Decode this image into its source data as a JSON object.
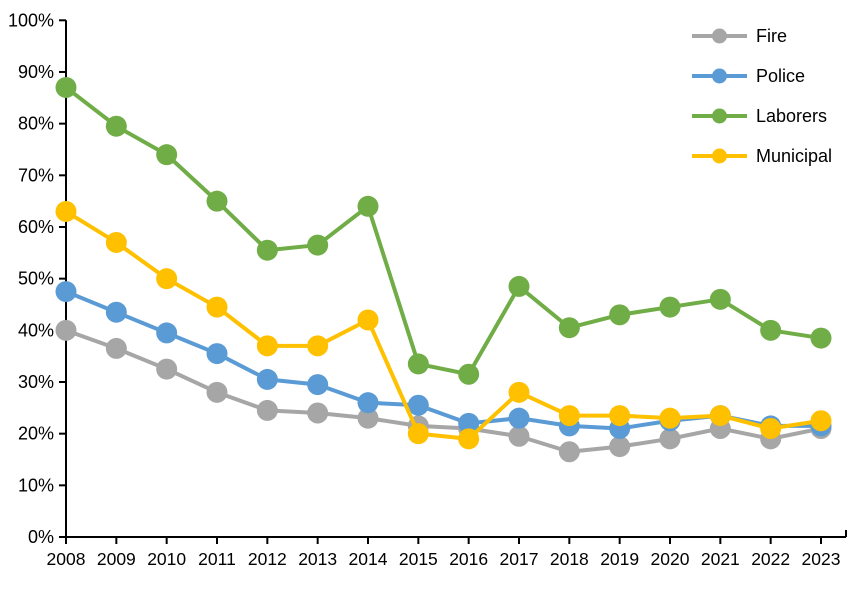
{
  "chart_data": {
    "type": "line",
    "title": "",
    "xlabel": "",
    "ylabel": "",
    "categories": [
      "2008",
      "2009",
      "2010",
      "2011",
      "2012",
      "2013",
      "2014",
      "2015",
      "2016",
      "2017",
      "2018",
      "2019",
      "2020",
      "2021",
      "2022",
      "2023"
    ],
    "series": [
      {
        "name": "Fire",
        "color": "#A6A6A6",
        "values": [
          40,
          36.5,
          32.5,
          28,
          24.5,
          24,
          23,
          21.5,
          21,
          19.5,
          16.5,
          17.5,
          19,
          21,
          19,
          21
        ]
      },
      {
        "name": "Police",
        "color": "#5B9BD5",
        "values": [
          47.5,
          43.5,
          39.5,
          35.5,
          30.5,
          29.5,
          26,
          25.5,
          22,
          23,
          21.5,
          21,
          22.5,
          23.5,
          21.5,
          21.5
        ]
      },
      {
        "name": "Laborers",
        "color": "#70AD47",
        "values": [
          87,
          79.5,
          74,
          65,
          55.5,
          56.5,
          64,
          33.5,
          31.5,
          48.5,
          40.5,
          43,
          44.5,
          46,
          40,
          38.5
        ]
      },
      {
        "name": "Municipal",
        "color": "#FFC000",
        "values": [
          63,
          57,
          50,
          44.5,
          37,
          37,
          42,
          20,
          19,
          28,
          23.5,
          23.5,
          23,
          23.5,
          21,
          22.5
        ]
      }
    ],
    "ylim": [
      0,
      100
    ],
    "y_tick_step": 10,
    "y_tick_labels": [
      "0%",
      "10%",
      "20%",
      "30%",
      "40%",
      "50%",
      "60%",
      "70%",
      "80%",
      "90%",
      "100%"
    ],
    "x_tick_labels": [
      "2008",
      "2009",
      "2010",
      "2011",
      "2012",
      "2013",
      "2014",
      "2015",
      "2016",
      "2017",
      "2018",
      "2019",
      "2020",
      "2021",
      "2022",
      "2023"
    ],
    "legend": [
      "Fire",
      "Police",
      "Laborers",
      "Municipal"
    ],
    "legend_position": "top-right",
    "grid": false,
    "axis_color": "#000000",
    "background_color": "#FFFFFF"
  }
}
